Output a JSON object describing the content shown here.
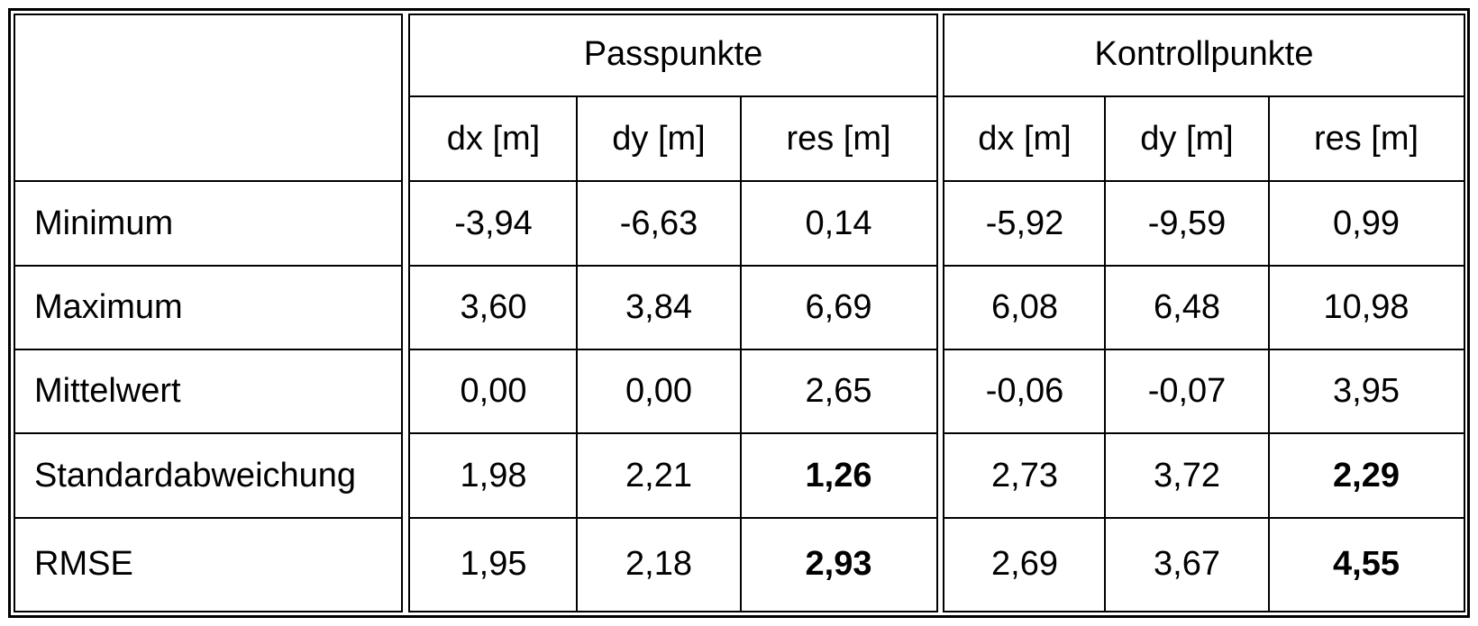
{
  "table": {
    "groups": [
      "Passpunkte",
      "Kontrollpunkte"
    ],
    "subheaders": [
      "dx [m]",
      "dy [m]",
      "res [m]",
      "dx [m]",
      "dy [m]",
      "res [m]"
    ],
    "rows": [
      {
        "label": "Minimum",
        "values": [
          "-3,94",
          "-6,63",
          "0,14",
          "-5,92",
          "-9,59",
          "0,99"
        ]
      },
      {
        "label": "Maximum",
        "values": [
          "3,60",
          "3,84",
          "6,69",
          "6,08",
          "6,48",
          "10,98"
        ]
      },
      {
        "label": "Mittelwert",
        "values": [
          "0,00",
          "0,00",
          "2,65",
          "-0,06",
          "-0,07",
          "3,95"
        ]
      },
      {
        "label": "Standardabweichung",
        "values": [
          "1,98",
          "2,21",
          "1,26",
          "2,73",
          "3,72",
          "2,29"
        ]
      },
      {
        "label": "RMSE",
        "values": [
          "1,95",
          "2,18",
          "2,93",
          "2,69",
          "3,67",
          "4,55"
        ]
      }
    ],
    "bold_columns_in_rows": {
      "Standardabweichung": [
        2,
        5
      ],
      "RMSE": [
        2,
        5
      ]
    }
  }
}
